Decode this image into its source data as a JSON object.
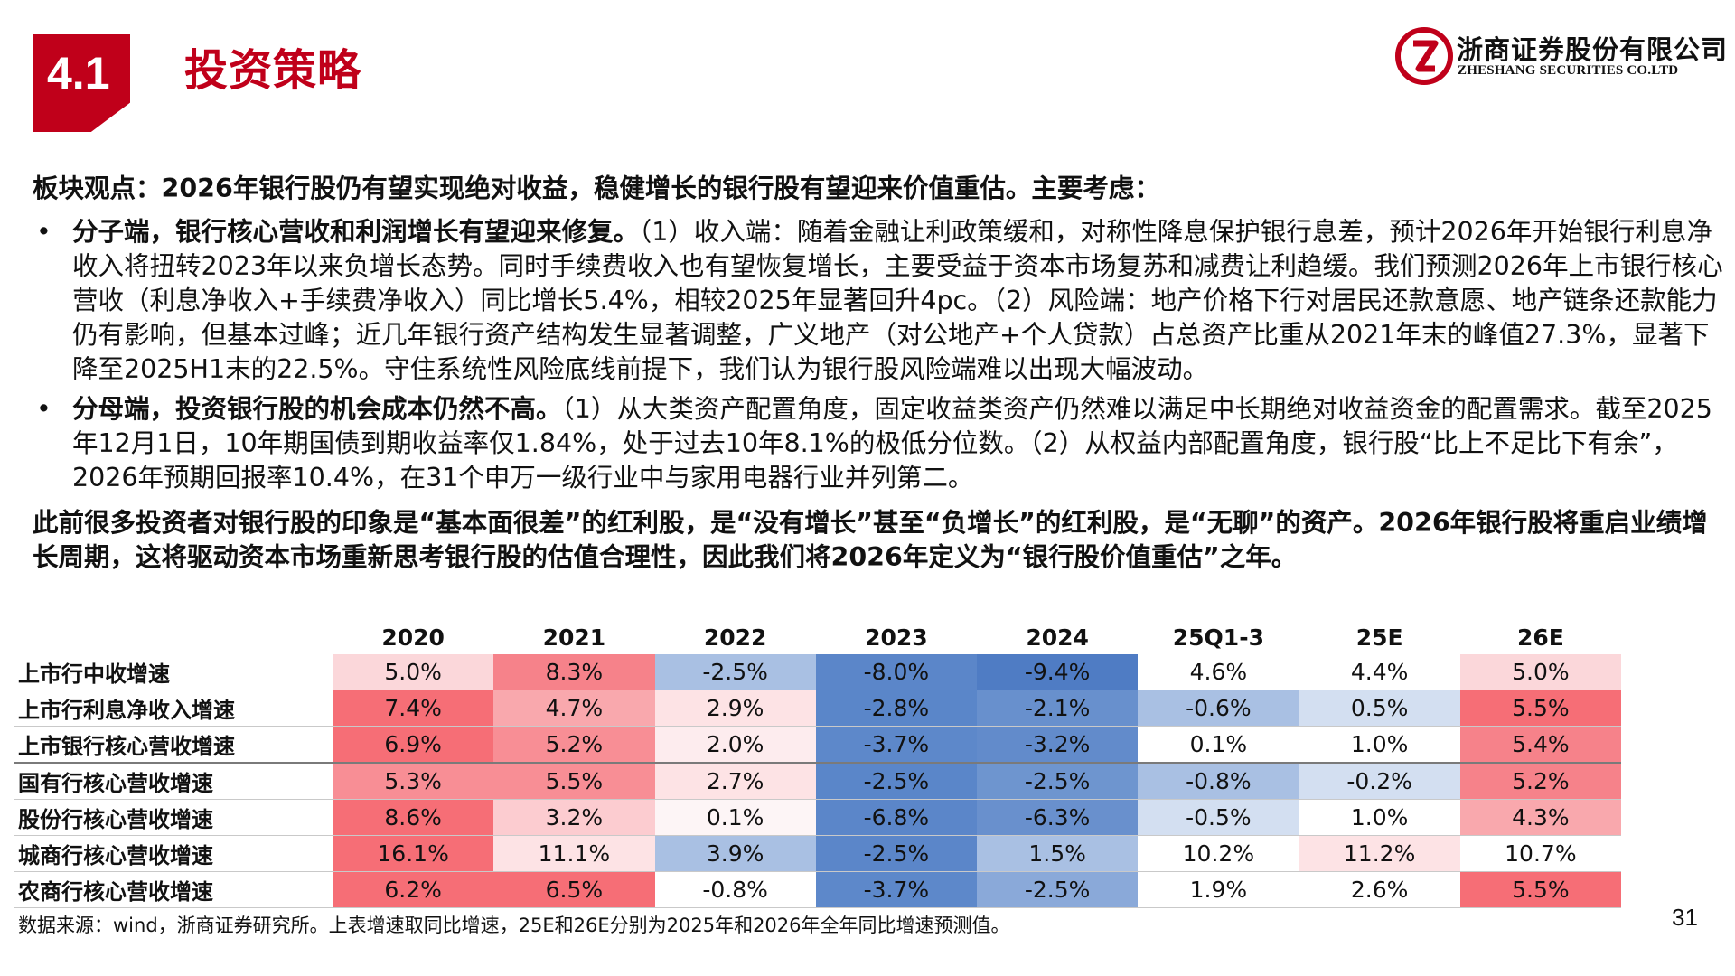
{
  "header": {
    "section_number": "4.1",
    "section_title": "投资策略",
    "company_name_cn": "浙商证券股份有限公司",
    "company_name_en": "ZHESHANG SECURITIES CO.LTD",
    "brand_color": "#c0001a"
  },
  "body": {
    "headline": "板块观点：2026年银行股仍有望实现绝对收益，稳健增长的银行股有望迎来价值重估。主要考虑：",
    "bullet_glyph": "•",
    "bullets": [
      {
        "lead": "分子端，银行核心营收和利润增长有望迎来修复。",
        "text": "（1）收入端：随着金融让利政策缓和，对称性降息保护银行息差，预计2026年开始银行利息净收入将扭转2023年以来负增长态势。同时手续费收入也有望恢复增长，主要受益于资本市场复苏和减费让利趋缓。我们预测2026年上市银行核心营收（利息净收入+手续费净收入）同比增长5.4%，相较2025年显著回升4pc。（2）风险端：地产价格下行对居民还款意愿、地产链条还款能力仍有影响，但基本过峰；近几年银行资产结构发生显著调整，广义地产（对公地产+个人贷款）占总资产比重从2021年末的峰值27.3%，显著下降至2025H1末的22.5%。守住系统性风险底线前提下，我们认为银行股风险端难以出现大幅波动。"
      },
      {
        "lead": "分母端，投资银行股的机会成本仍然不高。",
        "text": "（1）从大类资产配置角度，固定收益类资产仍然难以满足中长期绝对收益资金的配置需求。截至2025年12月1日，10年期国债到期收益率仅1.84%，处于过去10年8.1%的极低分位数。（2）从权益内部配置角度，银行股“比上不足比下有余”，2026年预期回报率10.4%，在31个申万一级行业中与家用电器行业并列第二。"
      }
    ],
    "closing": "此前很多投资者对银行股的印象是“基本面很差”的红利股，是“没有增长”甚至“负增长”的红利股，是“无聊”的资产。2026年银行股将重启业绩增长周期，这将驱动资本市场重新思考银行股的估值合理性，因此我们将2026年定义为“银行股价值重估”之年。"
  },
  "chart_data": {
    "type": "table",
    "columns": [
      "2020",
      "2021",
      "2022",
      "2023",
      "2024",
      "25Q1-3",
      "25E",
      "26E"
    ],
    "rows": [
      {
        "label": "上市行中收增速",
        "values": [
          "5.0%",
          "8.3%",
          "-2.5%",
          "-8.0%",
          "-9.4%",
          "4.6%",
          "4.4%",
          "5.0%"
        ]
      },
      {
        "label": "上市行利息净收入增速",
        "values": [
          "7.4%",
          "4.7%",
          "2.9%",
          "-2.8%",
          "-2.1%",
          "-0.6%",
          "0.5%",
          "5.5%"
        ]
      },
      {
        "label": "上市银行核心营收增速",
        "values": [
          "6.9%",
          "5.2%",
          "2.0%",
          "-3.7%",
          "-3.2%",
          "0.1%",
          "1.0%",
          "5.4%"
        ]
      },
      {
        "label": "国有行核心营收增速",
        "values": [
          "5.3%",
          "5.5%",
          "2.7%",
          "-2.5%",
          "-2.5%",
          "-0.8%",
          "-0.2%",
          "5.2%"
        ]
      },
      {
        "label": "股份行核心营收增速",
        "values": [
          "8.6%",
          "3.2%",
          "0.1%",
          "-6.8%",
          "-6.3%",
          "-0.5%",
          "1.0%",
          "4.3%"
        ]
      },
      {
        "label": "城商行核心营收增速",
        "values": [
          "16.1%",
          "11.1%",
          "3.9%",
          "-2.5%",
          "1.5%",
          "10.2%",
          "11.2%",
          "10.7%"
        ]
      },
      {
        "label": "农商行核心营收增速",
        "values": [
          "6.2%",
          "6.5%",
          "-0.8%",
          "-3.7%",
          "-2.5%",
          "1.9%",
          "2.6%",
          "5.5%"
        ]
      }
    ],
    "cell_colors": [
      [
        "#fbd7da",
        "#f6828a",
        "#a9c0e3",
        "#5b86c9",
        "#4f7cc4",
        "#ffffff",
        "#ffffff",
        "#fbd7da"
      ],
      [
        "#f66e76",
        "#f9a8ad",
        "#fde3e5",
        "#5a86c9",
        "#6890cd",
        "#a9c0e3",
        "#d3dff1",
        "#f66e76"
      ],
      [
        "#f66e76",
        "#f88e95",
        "#fdecee",
        "#5d88ca",
        "#628bcb",
        "#ffffff",
        "#ffffff",
        "#f6828a"
      ],
      [
        "#f88e95",
        "#f88e95",
        "#fde3e5",
        "#5a86c9",
        "#6e95cf",
        "#a9c0e3",
        "#d3dff1",
        "#f6828a"
      ],
      [
        "#f66e76",
        "#fcccd0",
        "#fdf5f6",
        "#5b86c9",
        "#6990cd",
        "#d3dff1",
        "#ffffff",
        "#f9a8ad"
      ],
      [
        "#f66e76",
        "#fde3e5",
        "#a9c0e3",
        "#5b86c9",
        "#a9c0e3",
        "#ffffff",
        "#fde3e5",
        "#ffffff"
      ],
      [
        "#f66e76",
        "#f66e76",
        "#ffffff",
        "#5d88ca",
        "#8aa9d9",
        "#ffffff",
        "#ffffff",
        "#f66e76"
      ]
    ],
    "group_break_before_row": 3
  },
  "footer": {
    "source_note": "数据来源：wind，浙商证券研究所。上表增速取同比增速，25E和26E分别为2025年和2026年全年同比增速预测值。",
    "page_number": "31"
  }
}
